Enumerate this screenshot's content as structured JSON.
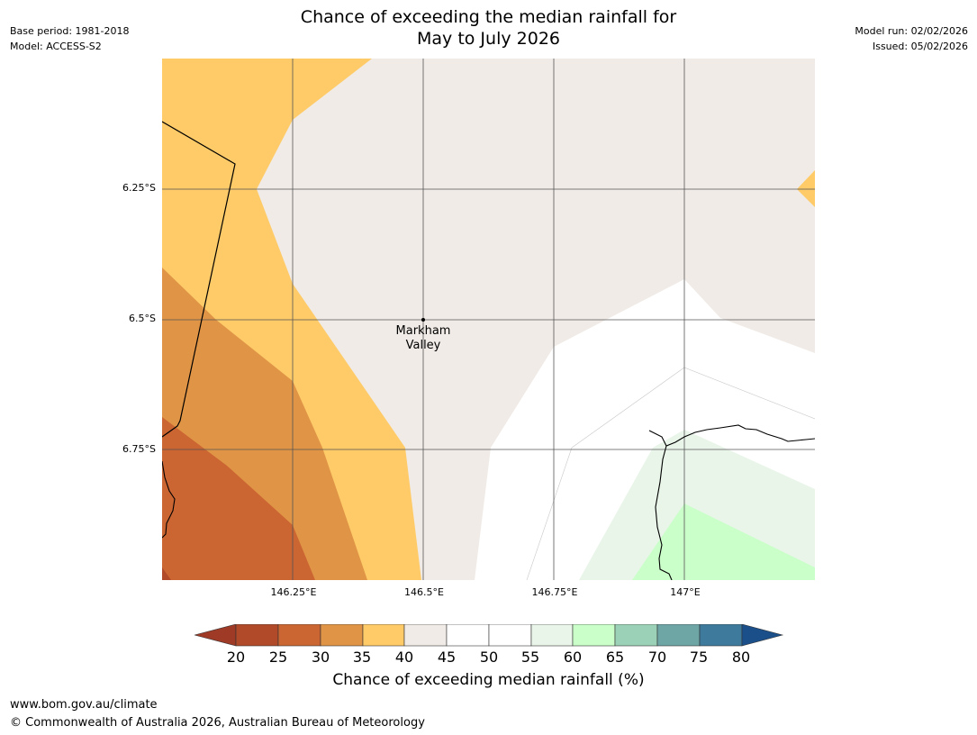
{
  "header": {
    "title_line1": "Chance of exceeding the median rainfall for",
    "title_line2": "May to July 2026",
    "base_period": "Base period: 1981-2018",
    "model": "Model: ACCESS-S2",
    "model_run": "Model run: 02/02/2026",
    "issued": "Issued: 05/02/2026"
  },
  "map": {
    "lat_labels": [
      "6.25°S",
      "6.5°S",
      "6.75°S"
    ],
    "lon_labels": [
      "146.25°E",
      "146.5°E",
      "146.75°E",
      "147°E"
    ],
    "place": {
      "line1": "Markham",
      "line2": "Valley"
    }
  },
  "colorbar": {
    "title": "Chance of exceeding median rainfall (%)",
    "ticks": [
      "20",
      "25",
      "30",
      "35",
      "40",
      "45",
      "50",
      "55",
      "60",
      "65",
      "70",
      "75",
      "80"
    ],
    "colors": {
      "under": "#9e3a26",
      "c20_25": "#b04a28",
      "c25_30": "#cb6532",
      "c30_35": "#e09446",
      "c35_40": "#fecb68",
      "c40_45": "#f0ebe6",
      "c45_55": "#ffffff",
      "c55_60": "#e9f5e9",
      "c60_65": "#caffca",
      "c65_70": "#9bd1b6",
      "c70_75": "#6ea6a6",
      "c75_80": "#3e7a9c",
      "over": "#1a4f8a"
    }
  },
  "footer": {
    "url": "www.bom.gov.au/climate",
    "copyright": "© Commonwealth of Australia 2026, Australian Bureau of Meteorology"
  }
}
